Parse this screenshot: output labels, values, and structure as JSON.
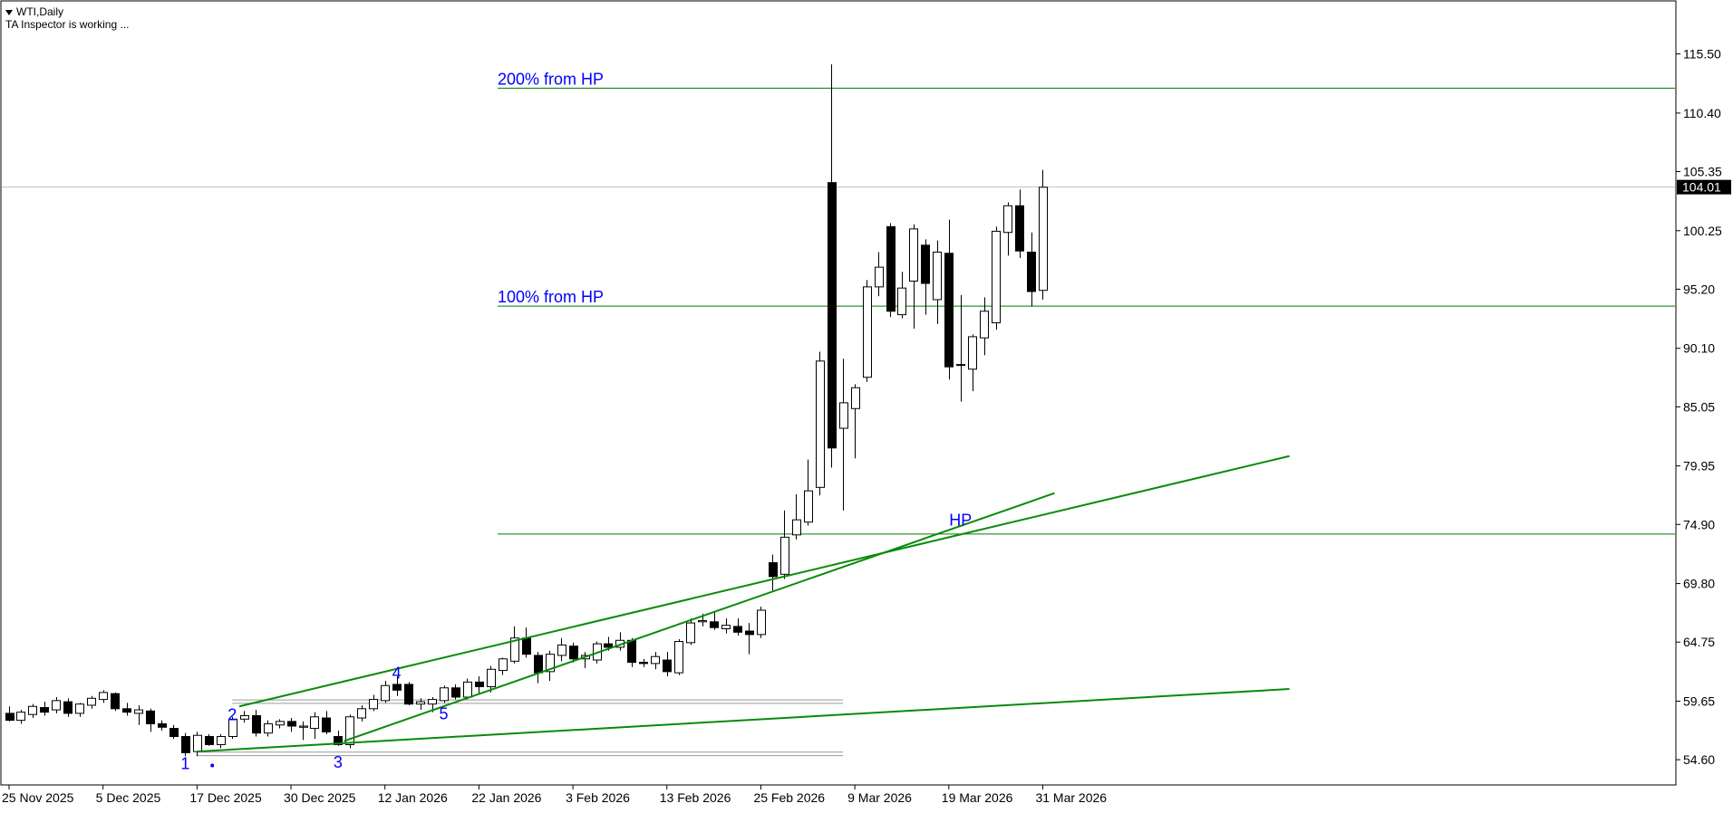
{
  "header": {
    "symbol_label": "WTI,Daily",
    "status": "TA Inspector is working ..."
  },
  "chart_data": {
    "type": "candlestick",
    "title": "",
    "xlabel": "",
    "ylabel": "",
    "ylim": [
      52.5,
      120.0
    ],
    "yticks": [
      "115.50",
      "110.40",
      "105.35",
      "100.25",
      "95.20",
      "90.10",
      "85.05",
      "79.95",
      "74.90",
      "69.80",
      "64.75",
      "59.65",
      "54.60"
    ],
    "current_price": "104.01",
    "xtick_labels": [
      {
        "label": "25 Nov 2025",
        "index": 0
      },
      {
        "label": "5 Dec 2025",
        "index": 8
      },
      {
        "label": "17 Dec 2025",
        "index": 16
      },
      {
        "label": "30 Dec 2025",
        "index": 24
      },
      {
        "label": "12 Jan 2026",
        "index": 32
      },
      {
        "label": "22 Jan 2026",
        "index": 40
      },
      {
        "label": "3 Feb 2026",
        "index": 48
      },
      {
        "label": "13 Feb 2026",
        "index": 56
      },
      {
        "label": "25 Feb 2026",
        "index": 64
      },
      {
        "label": "9 Mar 2026",
        "index": 72
      },
      {
        "label": "19 Mar 2026",
        "index": 80
      },
      {
        "label": "31 Mar 2026",
        "index": 88
      }
    ],
    "candles": [
      {
        "o": 58.6,
        "h": 59.2,
        "l": 57.9,
        "c": 58.0
      },
      {
        "o": 58.0,
        "h": 58.9,
        "l": 57.7,
        "c": 58.7
      },
      {
        "o": 58.5,
        "h": 59.4,
        "l": 58.2,
        "c": 59.2
      },
      {
        "o": 59.1,
        "h": 59.6,
        "l": 58.4,
        "c": 58.7
      },
      {
        "o": 58.9,
        "h": 60.0,
        "l": 58.6,
        "c": 59.7
      },
      {
        "o": 59.6,
        "h": 59.9,
        "l": 58.3,
        "c": 58.6
      },
      {
        "o": 58.6,
        "h": 59.5,
        "l": 58.3,
        "c": 59.4
      },
      {
        "o": 59.3,
        "h": 60.1,
        "l": 59.0,
        "c": 59.9
      },
      {
        "o": 59.8,
        "h": 60.6,
        "l": 59.5,
        "c": 60.4
      },
      {
        "o": 60.3,
        "h": 60.4,
        "l": 58.8,
        "c": 59.0
      },
      {
        "o": 59.0,
        "h": 59.5,
        "l": 58.4,
        "c": 58.7
      },
      {
        "o": 58.6,
        "h": 59.3,
        "l": 57.6,
        "c": 58.9
      },
      {
        "o": 58.8,
        "h": 59.0,
        "l": 57.0,
        "c": 57.7
      },
      {
        "o": 57.7,
        "h": 58.0,
        "l": 57.1,
        "c": 57.4
      },
      {
        "o": 57.3,
        "h": 57.6,
        "l": 56.4,
        "c": 56.6
      },
      {
        "o": 56.6,
        "h": 56.9,
        "l": 54.9,
        "c": 55.2
      },
      {
        "o": 55.3,
        "h": 57.0,
        "l": 54.9,
        "c": 56.7
      },
      {
        "o": 56.6,
        "h": 56.8,
        "l": 55.8,
        "c": 55.9
      },
      {
        "o": 55.9,
        "h": 56.8,
        "l": 55.6,
        "c": 56.6
      },
      {
        "o": 56.6,
        "h": 58.3,
        "l": 56.4,
        "c": 58.1
      },
      {
        "o": 58.1,
        "h": 58.8,
        "l": 57.8,
        "c": 58.4
      },
      {
        "o": 58.4,
        "h": 58.9,
        "l": 56.6,
        "c": 56.9
      },
      {
        "o": 56.9,
        "h": 58.0,
        "l": 56.6,
        "c": 57.7
      },
      {
        "o": 57.6,
        "h": 58.1,
        "l": 57.3,
        "c": 57.9
      },
      {
        "o": 57.9,
        "h": 58.2,
        "l": 57.0,
        "c": 57.5
      },
      {
        "o": 57.4,
        "h": 57.9,
        "l": 56.3,
        "c": 57.5
      },
      {
        "o": 57.3,
        "h": 58.7,
        "l": 56.4,
        "c": 58.3
      },
      {
        "o": 58.2,
        "h": 58.8,
        "l": 56.8,
        "c": 57.0
      },
      {
        "o": 56.6,
        "h": 57.1,
        "l": 55.8,
        "c": 55.9
      },
      {
        "o": 55.9,
        "h": 58.5,
        "l": 55.6,
        "c": 58.3
      },
      {
        "o": 58.2,
        "h": 59.3,
        "l": 57.9,
        "c": 59.0
      },
      {
        "o": 59.0,
        "h": 60.2,
        "l": 58.8,
        "c": 59.8
      },
      {
        "o": 59.7,
        "h": 61.4,
        "l": 59.5,
        "c": 61.0
      },
      {
        "o": 61.1,
        "h": 61.8,
        "l": 60.1,
        "c": 60.6
      },
      {
        "o": 61.1,
        "h": 61.3,
        "l": 59.3,
        "c": 59.4
      },
      {
        "o": 59.4,
        "h": 59.9,
        "l": 58.9,
        "c": 59.6
      },
      {
        "o": 59.4,
        "h": 60.0,
        "l": 58.7,
        "c": 59.8
      },
      {
        "o": 59.7,
        "h": 61.0,
        "l": 59.5,
        "c": 60.8
      },
      {
        "o": 60.8,
        "h": 61.1,
        "l": 59.8,
        "c": 60.0
      },
      {
        "o": 60.0,
        "h": 61.6,
        "l": 59.8,
        "c": 61.3
      },
      {
        "o": 61.3,
        "h": 61.8,
        "l": 60.3,
        "c": 60.9
      },
      {
        "o": 60.9,
        "h": 62.7,
        "l": 60.4,
        "c": 62.4
      },
      {
        "o": 62.3,
        "h": 63.4,
        "l": 61.9,
        "c": 63.3
      },
      {
        "o": 63.1,
        "h": 66.1,
        "l": 62.9,
        "c": 65.1
      },
      {
        "o": 65.1,
        "h": 66.0,
        "l": 63.4,
        "c": 63.7
      },
      {
        "o": 63.6,
        "h": 63.9,
        "l": 61.2,
        "c": 62.1
      },
      {
        "o": 62.2,
        "h": 64.0,
        "l": 61.4,
        "c": 63.7
      },
      {
        "o": 63.6,
        "h": 65.1,
        "l": 63.1,
        "c": 64.5
      },
      {
        "o": 64.4,
        "h": 64.7,
        "l": 63.0,
        "c": 63.3
      },
      {
        "o": 63.3,
        "h": 63.9,
        "l": 62.5,
        "c": 63.6
      },
      {
        "o": 63.2,
        "h": 64.8,
        "l": 62.9,
        "c": 64.6
      },
      {
        "o": 64.6,
        "h": 65.2,
        "l": 64.0,
        "c": 64.3
      },
      {
        "o": 64.3,
        "h": 65.6,
        "l": 64.0,
        "c": 64.9
      },
      {
        "o": 64.9,
        "h": 65.1,
        "l": 62.6,
        "c": 63.0
      },
      {
        "o": 63.0,
        "h": 63.3,
        "l": 62.6,
        "c": 62.9
      },
      {
        "o": 62.9,
        "h": 63.9,
        "l": 62.4,
        "c": 63.5
      },
      {
        "o": 63.2,
        "h": 63.9,
        "l": 61.8,
        "c": 62.2
      },
      {
        "o": 62.1,
        "h": 65.0,
        "l": 61.9,
        "c": 64.8
      },
      {
        "o": 64.7,
        "h": 66.8,
        "l": 64.5,
        "c": 66.4
      },
      {
        "o": 66.5,
        "h": 67.2,
        "l": 66.1,
        "c": 66.6
      },
      {
        "o": 66.5,
        "h": 67.4,
        "l": 65.8,
        "c": 66.0
      },
      {
        "o": 65.9,
        "h": 66.8,
        "l": 65.5,
        "c": 66.2
      },
      {
        "o": 66.1,
        "h": 66.8,
        "l": 65.3,
        "c": 65.6
      },
      {
        "o": 65.7,
        "h": 66.4,
        "l": 63.7,
        "c": 65.4
      },
      {
        "o": 65.4,
        "h": 67.8,
        "l": 65.1,
        "c": 67.5
      },
      {
        "o": 71.6,
        "h": 72.3,
        "l": 69.2,
        "c": 70.4
      },
      {
        "o": 70.6,
        "h": 76.1,
        "l": 70.2,
        "c": 73.8
      },
      {
        "o": 74.0,
        "h": 77.5,
        "l": 73.6,
        "c": 75.3
      },
      {
        "o": 75.1,
        "h": 80.5,
        "l": 74.8,
        "c": 77.8
      },
      {
        "o": 78.1,
        "h": 89.8,
        "l": 77.4,
        "c": 89.0
      },
      {
        "o": 104.4,
        "h": 114.6,
        "l": 79.8,
        "c": 81.5
      },
      {
        "o": 83.2,
        "h": 89.2,
        "l": 76.1,
        "c": 85.4
      },
      {
        "o": 84.9,
        "h": 87.0,
        "l": 80.6,
        "c": 86.7
      },
      {
        "o": 87.6,
        "h": 96.0,
        "l": 87.2,
        "c": 95.4
      },
      {
        "o": 95.4,
        "h": 98.4,
        "l": 94.6,
        "c": 97.1
      },
      {
        "o": 100.6,
        "h": 100.9,
        "l": 92.8,
        "c": 93.3
      },
      {
        "o": 93.0,
        "h": 96.7,
        "l": 92.7,
        "c": 95.3
      },
      {
        "o": 95.9,
        "h": 100.8,
        "l": 91.8,
        "c": 100.4
      },
      {
        "o": 99.0,
        "h": 99.5,
        "l": 93.0,
        "c": 95.7
      },
      {
        "o": 94.3,
        "h": 99.4,
        "l": 92.2,
        "c": 98.4
      },
      {
        "o": 98.3,
        "h": 101.2,
        "l": 87.4,
        "c": 88.5
      },
      {
        "o": 88.7,
        "h": 94.7,
        "l": 85.5,
        "c": 88.7
      },
      {
        "o": 88.3,
        "h": 91.3,
        "l": 86.4,
        "c": 91.1
      },
      {
        "o": 91.0,
        "h": 94.5,
        "l": 89.5,
        "c": 93.3
      },
      {
        "o": 92.3,
        "h": 100.6,
        "l": 91.7,
        "c": 100.2
      },
      {
        "o": 100.1,
        "h": 102.7,
        "l": 98.1,
        "c": 102.4
      },
      {
        "o": 102.4,
        "h": 103.8,
        "l": 97.9,
        "c": 98.5
      },
      {
        "o": 98.4,
        "h": 100.1,
        "l": 93.7,
        "c": 95.0
      },
      {
        "o": 95.1,
        "h": 105.5,
        "l": 94.3,
        "c": 104.0
      }
    ],
    "levels": [
      {
        "label": "200% from HP",
        "value": 112.55
      },
      {
        "label": "100% from HP",
        "value": 93.74
      },
      {
        "label": "",
        "value": 74.07
      }
    ],
    "wave_labels": [
      {
        "text": "1",
        "index": 15,
        "price": 53.8
      },
      {
        "text": "2",
        "index": 19,
        "price": 58.0
      },
      {
        "text": "3",
        "index": 28,
        "price": 53.9
      },
      {
        "text": "4",
        "index": 33,
        "price": 61.6
      },
      {
        "text": "5",
        "index": 37,
        "price": 58.1
      },
      {
        "text": "HP",
        "index": 81,
        "price": 74.8
      }
    ],
    "trendlines": [
      {
        "x1": 19.6,
        "y1": 59.2,
        "x2": 109,
        "y2": 80.8
      },
      {
        "x1": 28.5,
        "y1": 56.2,
        "x2": 89,
        "y2": 77.6
      },
      {
        "x1": 16,
        "y1": 55.3,
        "x2": 109,
        "y2": 60.7
      }
    ],
    "grey_lines": [
      {
        "x1": 19,
        "x2": 71,
        "y": 59.76
      },
      {
        "x1": 19,
        "x2": 71,
        "y": 59.46
      },
      {
        "x1": 16,
        "x2": 71,
        "y": 55.25
      },
      {
        "x1": 16,
        "x2": 71,
        "y": 54.95
      }
    ]
  }
}
